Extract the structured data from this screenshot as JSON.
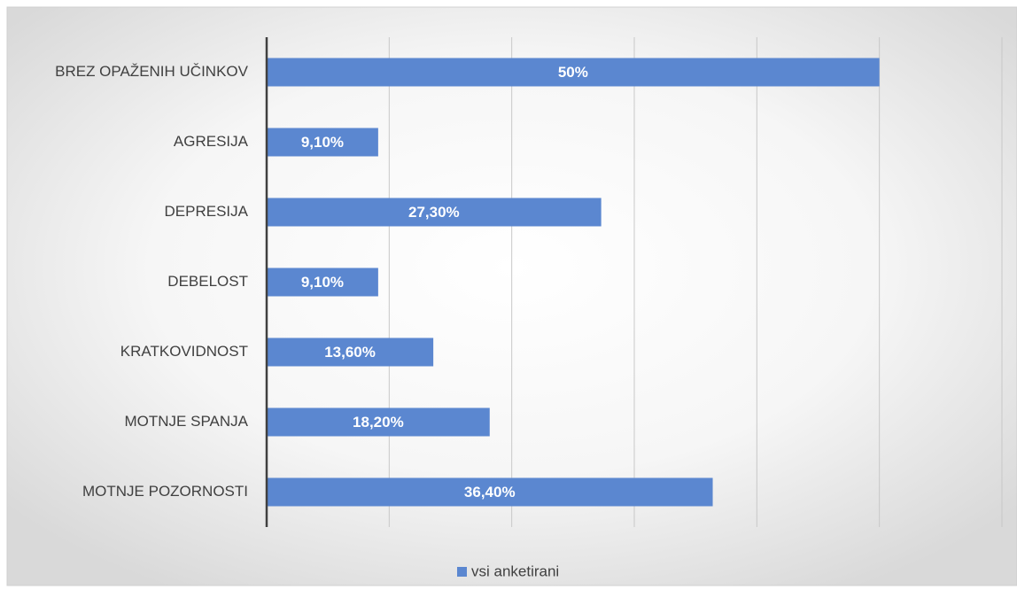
{
  "chart_data": {
    "type": "barh",
    "categories": [
      "BREZ OPAŽENIH UČINKOV",
      "AGRESIJA",
      "DEPRESIJA",
      "DEBELOST",
      "KRATKOVIDNOST",
      "MOTNJE SPANJA",
      "MOTNJE POZORNOSTI"
    ],
    "series": [
      {
        "name": "vsi anketirani",
        "color": "#5b87d0",
        "values": [
          50,
          9.1,
          27.3,
          9.1,
          13.6,
          18.2,
          36.4
        ],
        "value_labels": [
          "50%",
          "9,10%",
          "27,30%",
          "9,10%",
          "13,60%",
          "18,20%",
          "36,40%"
        ]
      }
    ],
    "xlim": [
      0,
      60
    ],
    "xticks": [
      0,
      10,
      20,
      30,
      40,
      50,
      60
    ],
    "grid": true,
    "legend": "bottom"
  }
}
